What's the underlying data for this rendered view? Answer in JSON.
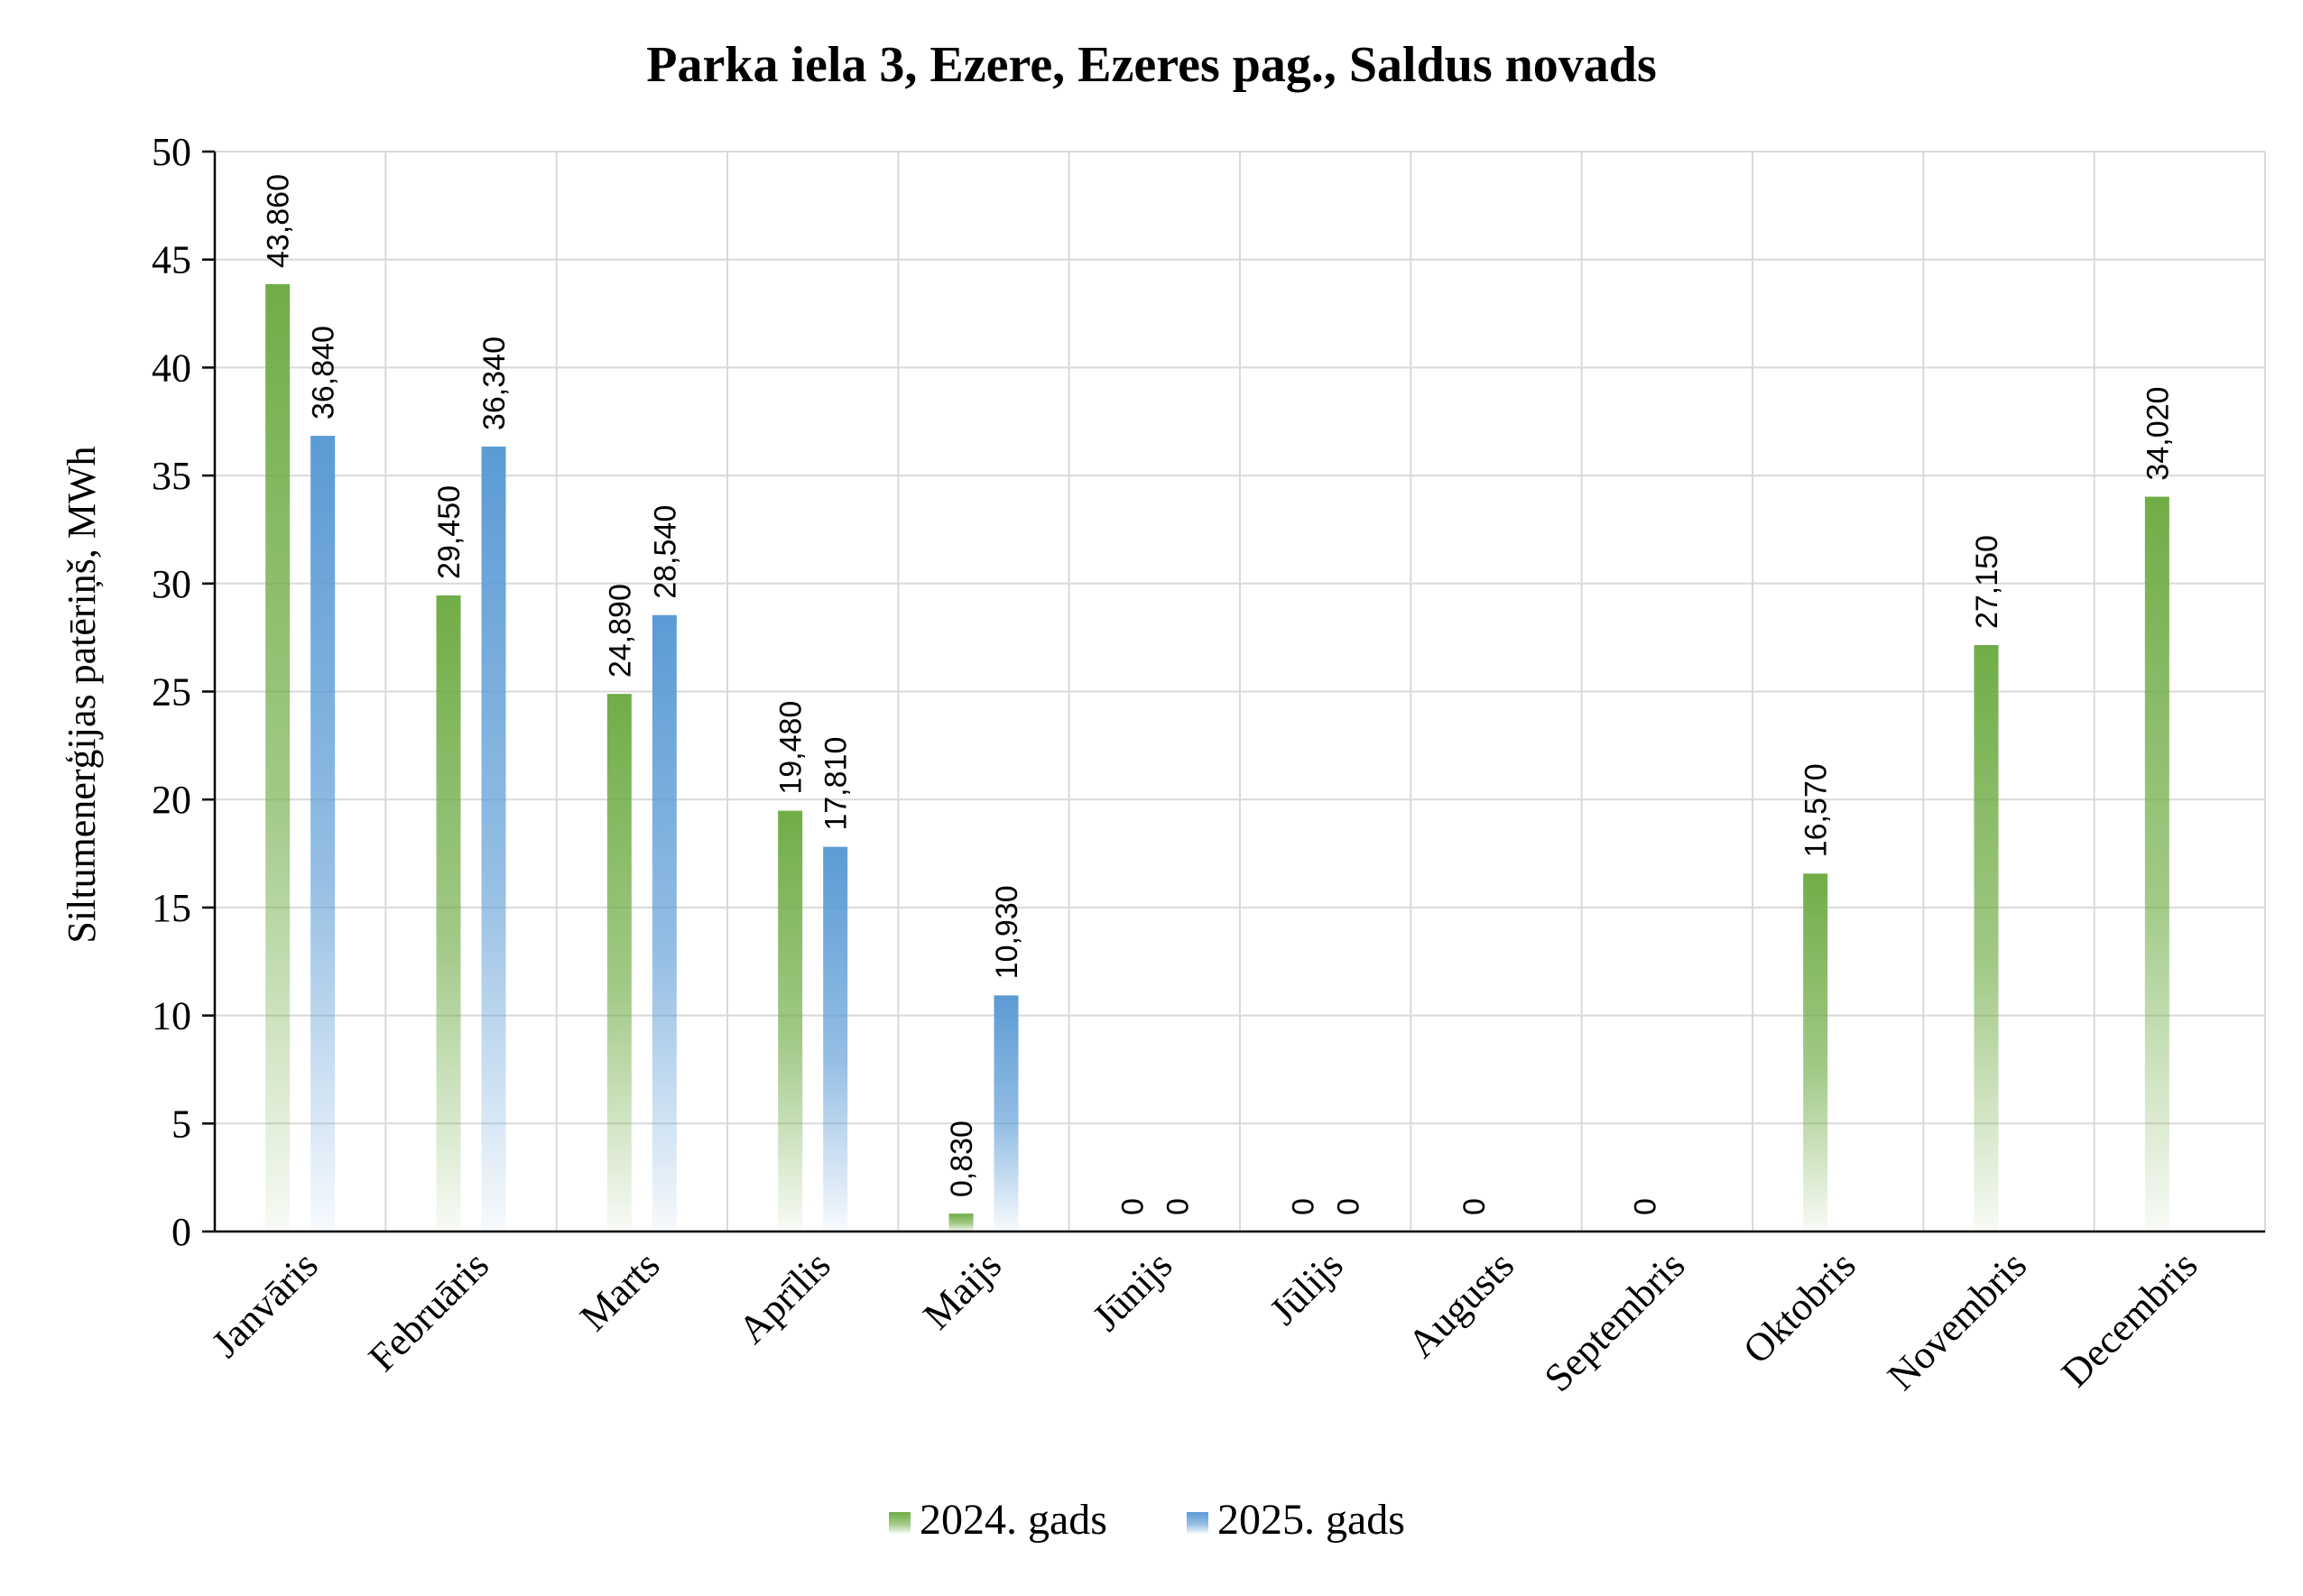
{
  "chart_data": {
    "type": "bar",
    "title": "Parka iela 3, Ezere, Ezeres pag., Saldus novads",
    "ylabel": "Siltumenerģijas patēriņš, MWh",
    "xlabel": "",
    "ylim": [
      0,
      50
    ],
    "yticks": [
      0,
      5,
      10,
      15,
      20,
      25,
      30,
      35,
      40,
      45,
      50
    ],
    "grid": true,
    "legend_position": "bottom",
    "categories": [
      "Janvāris",
      "Februāris",
      "Marts",
      "Aprīlis",
      "Maijs",
      "Jūnijs",
      "Jūlijs",
      "Augusts",
      "Septembris",
      "Oktobris",
      "Novembris",
      "Decembris"
    ],
    "series": [
      {
        "name": "2024. gads",
        "color": "#70ad47",
        "values": [
          43.86,
          29.45,
          24.89,
          19.48,
          0.83,
          0,
          0,
          0,
          0,
          16.57,
          27.15,
          34.02
        ],
        "labels": [
          "43,860",
          "29,450",
          "24,890",
          "19,480",
          "0,830",
          "0",
          "0",
          "0",
          "0",
          "16,570",
          "27,150",
          "34,020"
        ]
      },
      {
        "name": "2025. gads",
        "color": "#5b9bd5",
        "values": [
          36.84,
          36.34,
          28.54,
          17.81,
          10.93,
          0,
          0,
          null,
          null,
          null,
          null,
          null
        ],
        "labels": [
          "36,840",
          "36,340",
          "28,540",
          "17,810",
          "10,930",
          "0",
          "0",
          null,
          null,
          null,
          null,
          null
        ]
      }
    ]
  }
}
